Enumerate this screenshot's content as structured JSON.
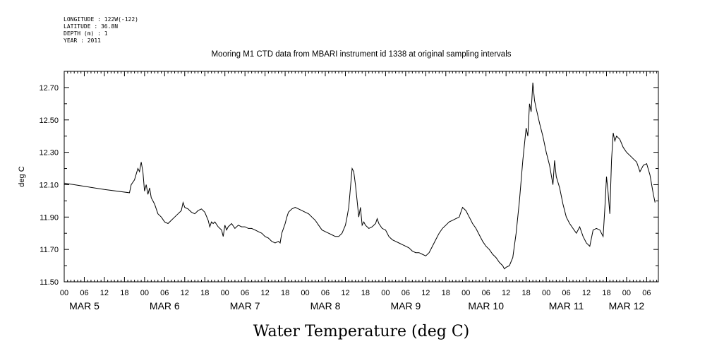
{
  "metadata": {
    "longitude": "LONGITUDE : 122W(-122)",
    "latitude": "LATITUDE : 36.8N",
    "depth": "DEPTH (m) : 1",
    "year": "YEAR : 2011"
  },
  "chart_data": {
    "type": "line",
    "title": "Mooring M1 CTD data from MBARI instrument id 1338 at original sampling intervals",
    "xlabel": "Water Temperature (deg C)",
    "ylabel": "deg C",
    "ylim": [
      11.5,
      12.8
    ],
    "xlim_hours": [
      0,
      168
    ],
    "y_ticks": [
      11.5,
      11.7,
      11.9,
      12.1,
      12.3,
      12.5,
      12.7
    ],
    "y_tick_labels": [
      "11.50",
      "11.70",
      "11.90",
      "12.10",
      "12.30",
      "12.50",
      "12.70"
    ],
    "x_hour_tick_labels": [
      "00",
      "06",
      "12",
      "18",
      "00",
      "06",
      "12",
      "18",
      "00",
      "06",
      "12",
      "18",
      "00",
      "06",
      "12",
      "18",
      "00",
      "06",
      "12",
      "18",
      "00",
      "06",
      "12",
      "18",
      "00",
      "06",
      "12",
      "18",
      "00",
      "06"
    ],
    "day_labels": [
      {
        "label": "MAR  5",
        "hour": 6
      },
      {
        "label": "MAR  6",
        "hour": 30
      },
      {
        "label": "MAR  7",
        "hour": 54
      },
      {
        "label": "MAR  8",
        "hour": 78
      },
      {
        "label": "MAR  9",
        "hour": 102
      },
      {
        "label": "MAR 10",
        "hour": 126
      },
      {
        "label": "MAR 11",
        "hour": 150
      },
      {
        "label": "MAR 12",
        "hour": 168
      }
    ],
    "series": [
      {
        "name": "Water Temperature",
        "points": [
          [
            0,
            12.11
          ],
          [
            6,
            12.09
          ],
          [
            12,
            12.07
          ],
          [
            19.5,
            12.05
          ],
          [
            20,
            12.1
          ],
          [
            21,
            12.13
          ],
          [
            22,
            12.2
          ],
          [
            22.5,
            12.18
          ],
          [
            23,
            12.24
          ],
          [
            23.5,
            12.18
          ],
          [
            24,
            12.06
          ],
          [
            24.5,
            12.1
          ],
          [
            25,
            12.04
          ],
          [
            25.5,
            12.08
          ],
          [
            26,
            12.02
          ],
          [
            27,
            11.98
          ],
          [
            28,
            11.92
          ],
          [
            29,
            11.9
          ],
          [
            30,
            11.87
          ],
          [
            31,
            11.86
          ],
          [
            32,
            11.88
          ],
          [
            33,
            11.9
          ],
          [
            34,
            11.92
          ],
          [
            35,
            11.94
          ],
          [
            35.5,
            11.99
          ],
          [
            36,
            11.96
          ],
          [
            37,
            11.95
          ],
          [
            38,
            11.93
          ],
          [
            39,
            11.92
          ],
          [
            40,
            11.94
          ],
          [
            41,
            11.95
          ],
          [
            42,
            11.93
          ],
          [
            43,
            11.88
          ],
          [
            43.5,
            11.84
          ],
          [
            44,
            11.87
          ],
          [
            44.5,
            11.86
          ],
          [
            45,
            11.87
          ],
          [
            46,
            11.84
          ],
          [
            47,
            11.82
          ],
          [
            47.5,
            11.78
          ],
          [
            48,
            11.85
          ],
          [
            48.5,
            11.82
          ],
          [
            49,
            11.84
          ],
          [
            50,
            11.86
          ],
          [
            51,
            11.83
          ],
          [
            52,
            11.85
          ],
          [
            53,
            11.84
          ],
          [
            54,
            11.84
          ],
          [
            55,
            11.83
          ],
          [
            56,
            11.83
          ],
          [
            57,
            11.82
          ],
          [
            58,
            11.81
          ],
          [
            59,
            11.8
          ],
          [
            60,
            11.78
          ],
          [
            61,
            11.77
          ],
          [
            62,
            11.75
          ],
          [
            63,
            11.74
          ],
          [
            64,
            11.75
          ],
          [
            64.5,
            11.74
          ],
          [
            65,
            11.8
          ],
          [
            65.5,
            11.83
          ],
          [
            66,
            11.86
          ],
          [
            66.5,
            11.9
          ],
          [
            67,
            11.93
          ],
          [
            68,
            11.95
          ],
          [
            69,
            11.96
          ],
          [
            70,
            11.95
          ],
          [
            71,
            11.94
          ],
          [
            72,
            11.93
          ],
          [
            73,
            11.92
          ],
          [
            74,
            11.9
          ],
          [
            75,
            11.88
          ],
          [
            76,
            11.85
          ],
          [
            77,
            11.82
          ],
          [
            78,
            11.81
          ],
          [
            79,
            11.8
          ],
          [
            80,
            11.79
          ],
          [
            81,
            11.78
          ],
          [
            82,
            11.78
          ],
          [
            83,
            11.8
          ],
          [
            84,
            11.85
          ],
          [
            84.5,
            11.9
          ],
          [
            85,
            11.96
          ],
          [
            85.5,
            12.08
          ],
          [
            86,
            12.2
          ],
          [
            86.5,
            12.18
          ],
          [
            87,
            12.1
          ],
          [
            87.5,
            12.0
          ],
          [
            88,
            11.9
          ],
          [
            88.5,
            11.96
          ],
          [
            89,
            11.85
          ],
          [
            89.5,
            11.87
          ],
          [
            90,
            11.85
          ],
          [
            91,
            11.83
          ],
          [
            92,
            11.84
          ],
          [
            93,
            11.86
          ],
          [
            93.5,
            11.89
          ],
          [
            94,
            11.86
          ],
          [
            95,
            11.83
          ],
          [
            96,
            11.82
          ],
          [
            97,
            11.78
          ],
          [
            98,
            11.76
          ],
          [
            99,
            11.75
          ],
          [
            100,
            11.74
          ],
          [
            101,
            11.73
          ],
          [
            102,
            11.72
          ],
          [
            103,
            11.71
          ],
          [
            104,
            11.69
          ],
          [
            105,
            11.68
          ],
          [
            106,
            11.68
          ],
          [
            107,
            11.67
          ],
          [
            108,
            11.66
          ],
          [
            109,
            11.68
          ],
          [
            110,
            11.72
          ],
          [
            111,
            11.76
          ],
          [
            112,
            11.8
          ],
          [
            113,
            11.83
          ],
          [
            114,
            11.85
          ],
          [
            115,
            11.87
          ],
          [
            116,
            11.88
          ],
          [
            117,
            11.89
          ],
          [
            118,
            11.9
          ],
          [
            118.5,
            11.93
          ],
          [
            119,
            11.96
          ],
          [
            120,
            11.94
          ],
          [
            121,
            11.9
          ],
          [
            122,
            11.86
          ],
          [
            123,
            11.83
          ],
          [
            124,
            11.79
          ],
          [
            125,
            11.75
          ],
          [
            126,
            11.72
          ],
          [
            127,
            11.7
          ],
          [
            128,
            11.67
          ],
          [
            129,
            11.65
          ],
          [
            130,
            11.62
          ],
          [
            131,
            11.6
          ],
          [
            131.5,
            11.58
          ],
          [
            132,
            11.59
          ],
          [
            133,
            11.6
          ],
          [
            134,
            11.65
          ],
          [
            135,
            11.8
          ],
          [
            136,
            12.0
          ],
          [
            137,
            12.25
          ],
          [
            138,
            12.45
          ],
          [
            138.5,
            12.4
          ],
          [
            139,
            12.6
          ],
          [
            139.5,
            12.55
          ],
          [
            140,
            12.73
          ],
          [
            140.5,
            12.62
          ],
          [
            141,
            12.57
          ],
          [
            142,
            12.48
          ],
          [
            143,
            12.4
          ],
          [
            144,
            12.3
          ],
          [
            145,
            12.22
          ],
          [
            146,
            12.1
          ],
          [
            146.5,
            12.25
          ],
          [
            147,
            12.15
          ],
          [
            148,
            12.08
          ],
          [
            149,
            11.98
          ],
          [
            150,
            11.9
          ],
          [
            151,
            11.86
          ],
          [
            152,
            11.83
          ],
          [
            153,
            11.8
          ],
          [
            154,
            11.84
          ],
          [
            155,
            11.78
          ],
          [
            156,
            11.74
          ],
          [
            157,
            11.72
          ],
          [
            158,
            11.82
          ],
          [
            159,
            11.83
          ],
          [
            160,
            11.82
          ],
          [
            161,
            11.78
          ],
          [
            161.5,
            11.95
          ],
          [
            162,
            12.15
          ],
          [
            162.5,
            12.05
          ],
          [
            163,
            11.92
          ],
          [
            163.5,
            12.25
          ],
          [
            164,
            12.42
          ],
          [
            164.5,
            12.37
          ],
          [
            165,
            12.4
          ],
          [
            166,
            12.38
          ],
          [
            167,
            12.33
          ],
          [
            168,
            12.3
          ],
          [
            169,
            12.28
          ],
          [
            170,
            12.26
          ],
          [
            171,
            12.24
          ],
          [
            172,
            12.18
          ],
          [
            173,
            12.22
          ],
          [
            174,
            12.23
          ],
          [
            175,
            12.16
          ],
          [
            175.5,
            12.1
          ],
          [
            176,
            12.04
          ],
          [
            176.5,
            11.99
          ]
        ]
      }
    ]
  }
}
